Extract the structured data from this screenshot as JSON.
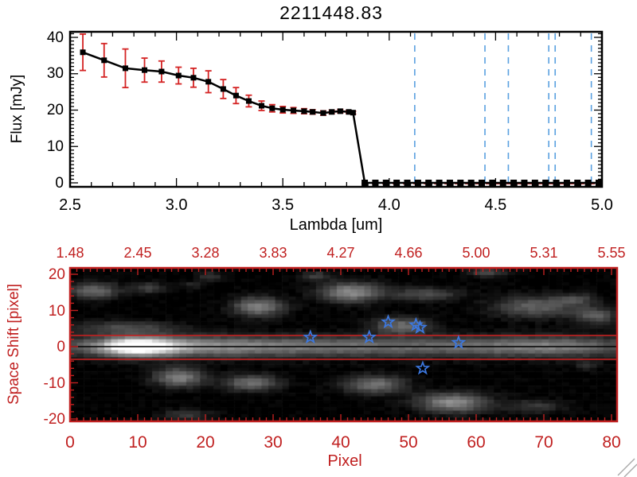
{
  "colors": {
    "background": "#ffffff",
    "axis_black": "#000000",
    "axis_red": "#c02020",
    "error_red": "#d42323",
    "dashed_blue": "#5aa0e0",
    "star_blue": "#3c78e0",
    "hatch_gray": "#aaaaaa"
  },
  "chart_data": [
    {
      "type": "line",
      "title": "2211448.83",
      "xlabel": "Lambda [um]",
      "ylabel": "Flux [mJy]",
      "xlim": [
        2.5,
        5.0
      ],
      "ylim": [
        0,
        40
      ],
      "x_tick_values": [
        2.5,
        3.0,
        3.5,
        4.0,
        4.5,
        5.0
      ],
      "x_tick_labels": [
        "2.5",
        "3.0",
        "3.5",
        "4.0",
        "4.5",
        "5.0"
      ],
      "y_tick_values": [
        0,
        10,
        20,
        30,
        40
      ],
      "y_tick_labels": [
        "0",
        "10",
        "20",
        "30",
        "40"
      ],
      "marker": "filled-square",
      "series": [
        {
          "name": "spectrum",
          "points_lambda_flux_err": [
            [
              2.56,
              35.9,
              5.0
            ],
            [
              2.66,
              33.7,
              4.6
            ],
            [
              2.76,
              31.5,
              5.3
            ],
            [
              2.85,
              31.0,
              3.3
            ],
            [
              2.93,
              30.6,
              2.9
            ],
            [
              3.01,
              29.5,
              2.3
            ],
            [
              3.08,
              28.9,
              2.6
            ],
            [
              3.15,
              27.8,
              3.0
            ],
            [
              3.22,
              25.8,
              2.6
            ],
            [
              3.28,
              24.0,
              2.2
            ],
            [
              3.34,
              22.5,
              1.6
            ],
            [
              3.4,
              21.2,
              1.3
            ],
            [
              3.45,
              20.5,
              1.0
            ],
            [
              3.5,
              20.1,
              0.9
            ],
            [
              3.55,
              19.9,
              0.8
            ],
            [
              3.6,
              19.7,
              0.7
            ],
            [
              3.64,
              19.5,
              0.6
            ],
            [
              3.69,
              19.2,
              0.6
            ],
            [
              3.73,
              19.5,
              0.5
            ],
            [
              3.77,
              19.7,
              0.5
            ],
            [
              3.81,
              19.5,
              0.4
            ],
            [
              3.83,
              19.3,
              0.4
            ]
          ]
        }
      ],
      "zero_flux_points": {
        "lambda_start": 3.885,
        "lambda_end": 4.985,
        "step": 0.05,
        "flux": 0
      },
      "zero_dashed_line": {
        "flux": 0,
        "from_um": 3.87,
        "to_um": 5.0,
        "style": "dashed-red"
      },
      "dashed_vlines_um": [
        4.12,
        4.45,
        4.56,
        4.75,
        4.78,
        4.95
      ]
    },
    {
      "type": "heatmap",
      "xlabel": "Pixel",
      "ylabel": "Space Shift [pixel]",
      "xlim": [
        0,
        80.8
      ],
      "ylim": [
        -20.7,
        21.8
      ],
      "x_tick_values": [
        0,
        10,
        20,
        30,
        40,
        50,
        60,
        70,
        80
      ],
      "x_tick_labels": [
        "0",
        "10",
        "20",
        "30",
        "40",
        "50",
        "60",
        "70",
        "80"
      ],
      "y_tick_values": [
        20,
        10,
        0,
        -10,
        -20
      ],
      "y_tick_labels": [
        "20",
        "10",
        "0",
        "-10",
        "-20"
      ],
      "top_axis_positions": [
        0,
        10,
        20,
        30,
        40,
        50,
        60,
        70,
        80
      ],
      "top_axis_labels": [
        "1.48",
        "2.45",
        "3.28",
        "3.83",
        "4.27",
        "4.66",
        "5.00",
        "5.31",
        "5.55"
      ],
      "aperture_lines_pixel": [
        3.1,
        -3.5
      ],
      "trace_line_pixel": 0,
      "stars_pixel_shift": [
        {
          "x": 35.5,
          "y": 2.6
        },
        {
          "x": 44.2,
          "y": 2.6
        },
        {
          "x": 47.0,
          "y": 6.8
        },
        {
          "x": 51.1,
          "y": 6.0
        },
        {
          "x": 51.7,
          "y": 5.3
        },
        {
          "x": 57.4,
          "y": 1.1
        },
        {
          "x": 52.1,
          "y": -6.0
        }
      ],
      "image_model": {
        "grid_cols": 80,
        "grid_rows": 43,
        "band_sigma": 2.0,
        "band_profile": [
          [
            0,
            0.3
          ],
          [
            3,
            0.42
          ],
          [
            5,
            0.58
          ],
          [
            7,
            0.82
          ],
          [
            9,
            1.0
          ],
          [
            11,
            1.0
          ],
          [
            13,
            0.9
          ],
          [
            16,
            0.7
          ],
          [
            20,
            0.58
          ],
          [
            25,
            0.55
          ],
          [
            30,
            0.5
          ],
          [
            36,
            0.46
          ],
          [
            42,
            0.44
          ],
          [
            48,
            0.42
          ],
          [
            54,
            0.4
          ],
          [
            60,
            0.44
          ],
          [
            65,
            0.5
          ],
          [
            70,
            0.52
          ],
          [
            74,
            0.46
          ],
          [
            78,
            0.34
          ],
          [
            80,
            0.3
          ]
        ],
        "blobs": [
          [
            3.5,
            15.5,
            2.6,
            1.6,
            0.42
          ],
          [
            11.5,
            16.2,
            1.6,
            1.0,
            0.28
          ],
          [
            18,
            17,
            1.2,
            0.8,
            0.15
          ],
          [
            27.5,
            11,
            2.6,
            1.9,
            0.5
          ],
          [
            20.5,
            19.5,
            1.3,
            0.9,
            0.2
          ],
          [
            36,
            19.5,
            1.6,
            0.9,
            0.25
          ],
          [
            41,
            15,
            3.2,
            1.9,
            0.55
          ],
          [
            52,
            14.5,
            3.6,
            1.3,
            0.3
          ],
          [
            61,
            20.5,
            2.0,
            0.9,
            0.28
          ],
          [
            68,
            11,
            4.2,
            2.1,
            0.38
          ],
          [
            74,
            13,
            2.0,
            1.2,
            0.25
          ],
          [
            77,
            8.5,
            2.2,
            1.6,
            0.35
          ],
          [
            8,
            5.2,
            5.5,
            1.3,
            0.28
          ],
          [
            48.5,
            5.8,
            3.0,
            1.6,
            0.42
          ],
          [
            16,
            -8.5,
            2.6,
            1.9,
            0.5
          ],
          [
            26.5,
            -10,
            2.9,
            1.6,
            0.42
          ],
          [
            44.5,
            -10.5,
            3.1,
            1.8,
            0.45
          ],
          [
            56,
            -15.5,
            3.6,
            1.9,
            0.55
          ],
          [
            17,
            -19,
            2.6,
            1.1,
            0.22
          ],
          [
            68,
            -16.5,
            3.0,
            1.3,
            0.22
          ],
          [
            75.5,
            -5.3,
            1.3,
            0.9,
            0.15
          ],
          [
            10,
            0,
            3.2,
            1.2,
            0.5
          ]
        ]
      }
    }
  ]
}
